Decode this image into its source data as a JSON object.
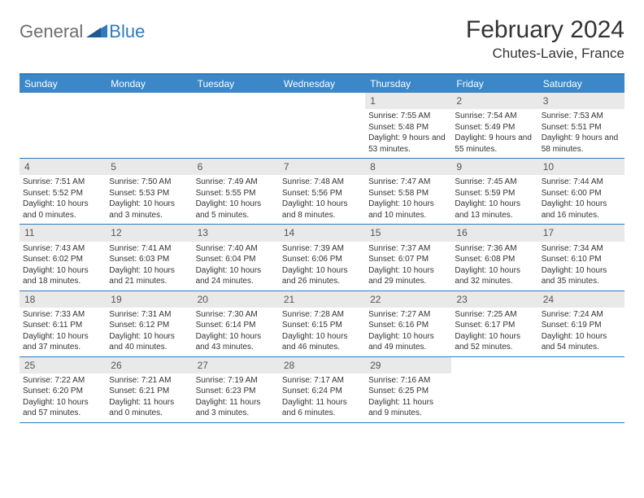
{
  "brand": {
    "part1": "General",
    "part2": "Blue"
  },
  "title": "February 2024",
  "location": "Chutes-Lavie, France",
  "colors": {
    "header_bg": "#3b87c8",
    "accent": "#2f7ac0",
    "day_number_bg": "#e9e9e9",
    "text": "#333333",
    "logo_gray": "#6d6d6d"
  },
  "fonts": {
    "title_size": 30,
    "location_size": 17,
    "day_header_size": 12,
    "cell_size": 10
  },
  "day_names": [
    "Sunday",
    "Monday",
    "Tuesday",
    "Wednesday",
    "Thursday",
    "Friday",
    "Saturday"
  ],
  "weeks": [
    [
      null,
      null,
      null,
      null,
      {
        "n": "1",
        "sunrise": "Sunrise: 7:55 AM",
        "sunset": "Sunset: 5:48 PM",
        "daylight": "Daylight: 9 hours and 53 minutes."
      },
      {
        "n": "2",
        "sunrise": "Sunrise: 7:54 AM",
        "sunset": "Sunset: 5:49 PM",
        "daylight": "Daylight: 9 hours and 55 minutes."
      },
      {
        "n": "3",
        "sunrise": "Sunrise: 7:53 AM",
        "sunset": "Sunset: 5:51 PM",
        "daylight": "Daylight: 9 hours and 58 minutes."
      }
    ],
    [
      {
        "n": "4",
        "sunrise": "Sunrise: 7:51 AM",
        "sunset": "Sunset: 5:52 PM",
        "daylight": "Daylight: 10 hours and 0 minutes."
      },
      {
        "n": "5",
        "sunrise": "Sunrise: 7:50 AM",
        "sunset": "Sunset: 5:53 PM",
        "daylight": "Daylight: 10 hours and 3 minutes."
      },
      {
        "n": "6",
        "sunrise": "Sunrise: 7:49 AM",
        "sunset": "Sunset: 5:55 PM",
        "daylight": "Daylight: 10 hours and 5 minutes."
      },
      {
        "n": "7",
        "sunrise": "Sunrise: 7:48 AM",
        "sunset": "Sunset: 5:56 PM",
        "daylight": "Daylight: 10 hours and 8 minutes."
      },
      {
        "n": "8",
        "sunrise": "Sunrise: 7:47 AM",
        "sunset": "Sunset: 5:58 PM",
        "daylight": "Daylight: 10 hours and 10 minutes."
      },
      {
        "n": "9",
        "sunrise": "Sunrise: 7:45 AM",
        "sunset": "Sunset: 5:59 PM",
        "daylight": "Daylight: 10 hours and 13 minutes."
      },
      {
        "n": "10",
        "sunrise": "Sunrise: 7:44 AM",
        "sunset": "Sunset: 6:00 PM",
        "daylight": "Daylight: 10 hours and 16 minutes."
      }
    ],
    [
      {
        "n": "11",
        "sunrise": "Sunrise: 7:43 AM",
        "sunset": "Sunset: 6:02 PM",
        "daylight": "Daylight: 10 hours and 18 minutes."
      },
      {
        "n": "12",
        "sunrise": "Sunrise: 7:41 AM",
        "sunset": "Sunset: 6:03 PM",
        "daylight": "Daylight: 10 hours and 21 minutes."
      },
      {
        "n": "13",
        "sunrise": "Sunrise: 7:40 AM",
        "sunset": "Sunset: 6:04 PM",
        "daylight": "Daylight: 10 hours and 24 minutes."
      },
      {
        "n": "14",
        "sunrise": "Sunrise: 7:39 AM",
        "sunset": "Sunset: 6:06 PM",
        "daylight": "Daylight: 10 hours and 26 minutes."
      },
      {
        "n": "15",
        "sunrise": "Sunrise: 7:37 AM",
        "sunset": "Sunset: 6:07 PM",
        "daylight": "Daylight: 10 hours and 29 minutes."
      },
      {
        "n": "16",
        "sunrise": "Sunrise: 7:36 AM",
        "sunset": "Sunset: 6:08 PM",
        "daylight": "Daylight: 10 hours and 32 minutes."
      },
      {
        "n": "17",
        "sunrise": "Sunrise: 7:34 AM",
        "sunset": "Sunset: 6:10 PM",
        "daylight": "Daylight: 10 hours and 35 minutes."
      }
    ],
    [
      {
        "n": "18",
        "sunrise": "Sunrise: 7:33 AM",
        "sunset": "Sunset: 6:11 PM",
        "daylight": "Daylight: 10 hours and 37 minutes."
      },
      {
        "n": "19",
        "sunrise": "Sunrise: 7:31 AM",
        "sunset": "Sunset: 6:12 PM",
        "daylight": "Daylight: 10 hours and 40 minutes."
      },
      {
        "n": "20",
        "sunrise": "Sunrise: 7:30 AM",
        "sunset": "Sunset: 6:14 PM",
        "daylight": "Daylight: 10 hours and 43 minutes."
      },
      {
        "n": "21",
        "sunrise": "Sunrise: 7:28 AM",
        "sunset": "Sunset: 6:15 PM",
        "daylight": "Daylight: 10 hours and 46 minutes."
      },
      {
        "n": "22",
        "sunrise": "Sunrise: 7:27 AM",
        "sunset": "Sunset: 6:16 PM",
        "daylight": "Daylight: 10 hours and 49 minutes."
      },
      {
        "n": "23",
        "sunrise": "Sunrise: 7:25 AM",
        "sunset": "Sunset: 6:17 PM",
        "daylight": "Daylight: 10 hours and 52 minutes."
      },
      {
        "n": "24",
        "sunrise": "Sunrise: 7:24 AM",
        "sunset": "Sunset: 6:19 PM",
        "daylight": "Daylight: 10 hours and 54 minutes."
      }
    ],
    [
      {
        "n": "25",
        "sunrise": "Sunrise: 7:22 AM",
        "sunset": "Sunset: 6:20 PM",
        "daylight": "Daylight: 10 hours and 57 minutes."
      },
      {
        "n": "26",
        "sunrise": "Sunrise: 7:21 AM",
        "sunset": "Sunset: 6:21 PM",
        "daylight": "Daylight: 11 hours and 0 minutes."
      },
      {
        "n": "27",
        "sunrise": "Sunrise: 7:19 AM",
        "sunset": "Sunset: 6:23 PM",
        "daylight": "Daylight: 11 hours and 3 minutes."
      },
      {
        "n": "28",
        "sunrise": "Sunrise: 7:17 AM",
        "sunset": "Sunset: 6:24 PM",
        "daylight": "Daylight: 11 hours and 6 minutes."
      },
      {
        "n": "29",
        "sunrise": "Sunrise: 7:16 AM",
        "sunset": "Sunset: 6:25 PM",
        "daylight": "Daylight: 11 hours and 9 minutes."
      },
      null,
      null
    ]
  ]
}
